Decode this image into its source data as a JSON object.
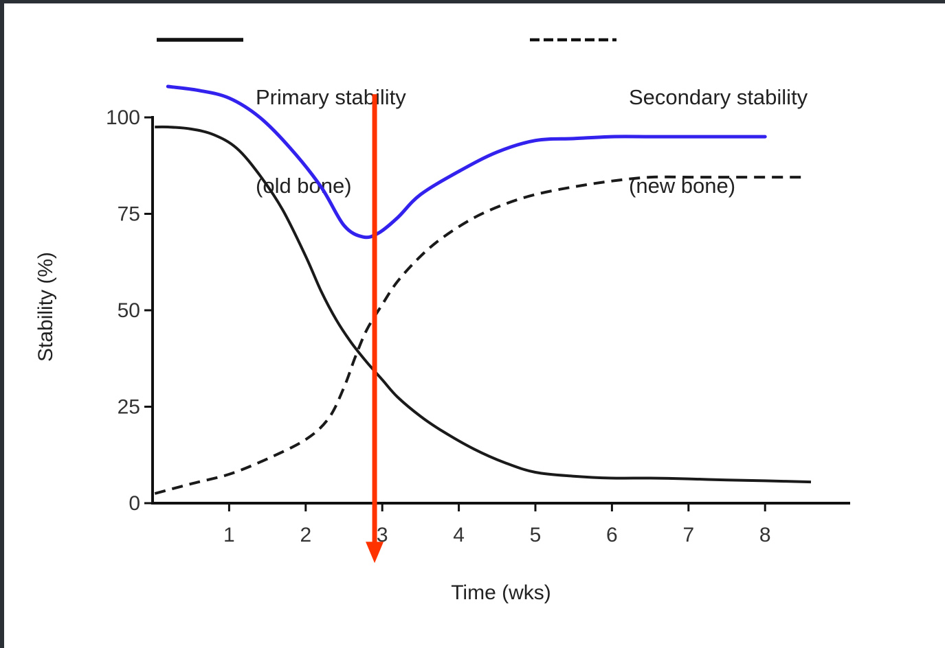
{
  "chart_data": {
    "type": "line",
    "title": "",
    "xlabel": "Time (wks)",
    "ylabel": "Stability (%)",
    "xlim": [
      0,
      9
    ],
    "ylim": [
      0,
      100
    ],
    "x_ticks": [
      "1",
      "2",
      "3",
      "4",
      "5",
      "6",
      "7",
      "8"
    ],
    "x_tick_values": [
      1,
      2,
      3,
      4,
      5,
      6,
      7,
      8
    ],
    "y_ticks": [
      "0",
      "25",
      "50",
      "75",
      "100"
    ],
    "y_tick_values": [
      0,
      25,
      50,
      75,
      100
    ],
    "legend": {
      "placement": "top",
      "entries": [
        {
          "series": "primary",
          "line1": "Primary stability",
          "line2": "(old bone)"
        },
        {
          "series": "secondary",
          "line1": "Secondary stability",
          "line2": "(new bone)"
        }
      ]
    },
    "series": [
      {
        "name": "Primary stability (old bone)",
        "key": "primary",
        "style": "solid",
        "color": "#1a1a1a",
        "x": [
          0.03,
          0.2,
          0.5,
          0.8,
          1.1,
          1.4,
          1.7,
          2.0,
          2.2,
          2.4,
          2.6,
          2.8,
          3.0,
          3.2,
          3.5,
          3.8,
          4.2,
          4.6,
          5.0,
          5.5,
          6.0,
          6.5,
          7.0,
          7.5,
          8.0,
          8.6
        ],
        "y": [
          97.5,
          97.5,
          97,
          95.5,
          92,
          85,
          76,
          64,
          55,
          47.5,
          41.5,
          36.5,
          32,
          27.5,
          22.5,
          18.5,
          14,
          10.5,
          8,
          7,
          6.5,
          6.5,
          6.3,
          6,
          5.8,
          5.5
        ]
      },
      {
        "name": "Secondary stability (new bone)",
        "key": "secondary",
        "style": "dashed",
        "color": "#1a1a1a",
        "x": [
          0.03,
          0.5,
          1.0,
          1.5,
          2.0,
          2.3,
          2.5,
          2.65,
          2.8,
          3.0,
          3.2,
          3.5,
          3.8,
          4.2,
          4.6,
          5.0,
          5.5,
          6.0,
          6.5,
          7.0,
          7.5,
          8.0,
          8.5
        ],
        "y": [
          2.5,
          5,
          7.5,
          11.5,
          16.5,
          22,
          30,
          38,
          45,
          51.5,
          57.5,
          64,
          69,
          74,
          77.5,
          80,
          82,
          83.5,
          84.5,
          84.5,
          84.5,
          84.5,
          84.5
        ]
      }
    ],
    "annotations": [
      {
        "name": "overall-stability",
        "kind": "curve",
        "color": "#3322ee",
        "x": [
          0.2,
          0.6,
          1.0,
          1.4,
          1.8,
          2.2,
          2.5,
          2.75,
          2.95,
          3.2,
          3.5,
          4.0,
          4.5,
          5.0,
          5.5,
          6.0,
          6.5,
          7.0,
          7.5,
          8.0
        ],
        "y": [
          108,
          107,
          105,
          100,
          92,
          82,
          72,
          69,
          70,
          74,
          80,
          86,
          91,
          94,
          94.5,
          95,
          95,
          95,
          95,
          95
        ]
      },
      {
        "name": "minimum-arrow",
        "kind": "arrow",
        "color": "#ff3300",
        "x": 2.9,
        "y_from": 106,
        "y_to": -15
      }
    ]
  }
}
